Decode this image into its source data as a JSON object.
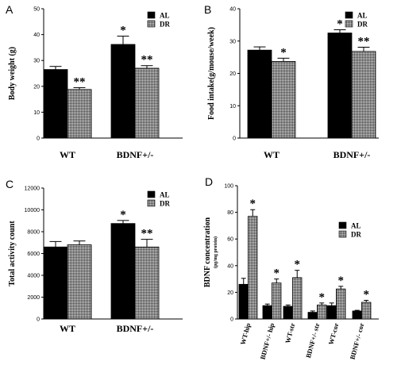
{
  "chart_data": [
    {
      "panel": "A",
      "type": "bar",
      "ylabel": "Body weight (g)",
      "ylim": [
        0,
        50
      ],
      "yticks": [
        0,
        10,
        20,
        30,
        40,
        50
      ],
      "categories": [
        "WT",
        "BDNF+/-"
      ],
      "legend": [
        "AL",
        "DR"
      ],
      "legend_position": "top-right",
      "series": [
        {
          "name": "AL",
          "values": [
            26.5,
            36.2
          ],
          "errors": [
            1.2,
            3.2
          ],
          "marks": [
            "",
            "*"
          ]
        },
        {
          "name": "DR",
          "values": [
            18.8,
            27.0
          ],
          "errors": [
            0.7,
            1.0
          ],
          "marks": [
            "**",
            "**"
          ]
        }
      ]
    },
    {
      "panel": "B",
      "type": "bar",
      "ylabel": "Food intake(g/mouse/week)",
      "ylim": [
        0,
        40
      ],
      "yticks": [
        0,
        10,
        20,
        30,
        40
      ],
      "categories": [
        "WT",
        "BDNF+/-"
      ],
      "legend": [
        "AL",
        "DR"
      ],
      "legend_position": "top-right",
      "series": [
        {
          "name": "AL",
          "values": [
            27.2,
            32.5
          ],
          "errors": [
            1.0,
            1.0
          ],
          "marks": [
            "",
            "*"
          ]
        },
        {
          "name": "DR",
          "values": [
            23.7,
            26.8
          ],
          "errors": [
            1.0,
            1.3
          ],
          "marks": [
            "*",
            "**"
          ]
        }
      ]
    },
    {
      "panel": "C",
      "type": "bar",
      "ylabel": "Total activity count",
      "ylim": [
        0,
        12000
      ],
      "yticks": [
        0,
        2000,
        4000,
        6000,
        8000,
        10000,
        12000
      ],
      "categories": [
        "WT",
        "BDNF+/-"
      ],
      "legend": [
        "AL",
        "DR"
      ],
      "legend_position": "top-right",
      "series": [
        {
          "name": "AL",
          "values": [
            6600,
            8750
          ],
          "errors": [
            500,
            280
          ],
          "marks": [
            "",
            "*"
          ]
        },
        {
          "name": "DR",
          "values": [
            6800,
            6600
          ],
          "errors": [
            350,
            700
          ],
          "marks": [
            "",
            "**"
          ]
        }
      ]
    },
    {
      "panel": "D",
      "type": "bar",
      "ylabel": "BDNF concentration",
      "ylabel_sub": "(pg/mg protein)",
      "ylim": [
        0,
        100
      ],
      "yticks": [
        0,
        20,
        40,
        60,
        80,
        100
      ],
      "categories": [
        "WT-hip",
        "BDNF+/- hip",
        "WT-str",
        "BDNF+/- str",
        "WT-cor",
        "BDNF+/- cor"
      ],
      "legend": [
        "AL",
        "DR"
      ],
      "legend_position": "top-right",
      "series": [
        {
          "name": "AL",
          "values": [
            26,
            10,
            9.5,
            5,
            10,
            6
          ],
          "errors": [
            4.5,
            1.2,
            1.0,
            1.0,
            2.0,
            0.5
          ],
          "marks": [
            "",
            "",
            "",
            "",
            "",
            ""
          ]
        },
        {
          "name": "DR",
          "values": [
            77,
            27,
            31,
            10.5,
            22.5,
            12.5
          ],
          "errors": [
            5,
            3,
            5.5,
            1.5,
            2,
            1.5
          ],
          "marks": [
            "*",
            "*",
            "*",
            "*",
            "*",
            "*"
          ]
        }
      ]
    }
  ]
}
